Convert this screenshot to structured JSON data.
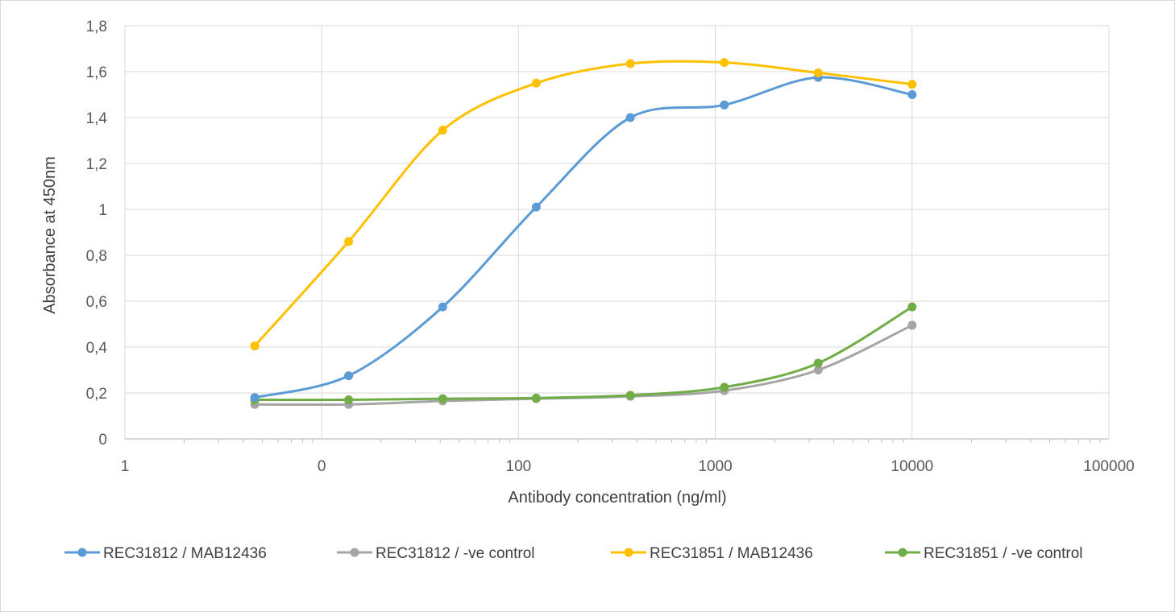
{
  "chart_data": {
    "type": "line",
    "title": "",
    "xlabel": "Antibody concentration (ng/ml)",
    "ylabel": "Absorbance at 450nm",
    "x_scale": "log",
    "xlim": [
      1,
      100000
    ],
    "ylim": [
      0,
      1.8
    ],
    "x_tick_labels": [
      "1",
      "0",
      "100",
      "1000",
      "10000",
      "100000"
    ],
    "y_tick_labels": [
      "0",
      "0,2",
      "0,4",
      "0,6",
      "0,8",
      "1",
      "1,2",
      "1,4",
      "1,6",
      "1,8"
    ],
    "y_tick_values": [
      0,
      0.2,
      0.4,
      0.6,
      0.8,
      1.0,
      1.2,
      1.4,
      1.6,
      1.8
    ],
    "grid": true,
    "legend_position": "bottom",
    "x": [
      4.57,
      13.7,
      41.2,
      123,
      370,
      1111,
      3333,
      10000
    ],
    "series": [
      {
        "name": "REC31812 / MAB12436",
        "color": "#5b9bd5",
        "values": [
          0.18,
          0.275,
          0.575,
          1.01,
          1.4,
          1.455,
          1.575,
          1.5
        ]
      },
      {
        "name": "REC31812 / -ve control",
        "color": "#a5a5a5",
        "values": [
          0.15,
          0.15,
          0.165,
          0.175,
          0.185,
          0.21,
          0.3,
          0.495
        ]
      },
      {
        "name": "REC31851 / MAB12436",
        "color": "#ffc000",
        "values": [
          0.405,
          0.86,
          1.345,
          1.55,
          1.635,
          1.64,
          1.595,
          1.545
        ]
      },
      {
        "name": "REC31851 / -ve control",
        "color": "#70ad47",
        "values": [
          0.17,
          0.17,
          0.175,
          0.178,
          0.19,
          0.225,
          0.33,
          0.575
        ]
      }
    ]
  }
}
